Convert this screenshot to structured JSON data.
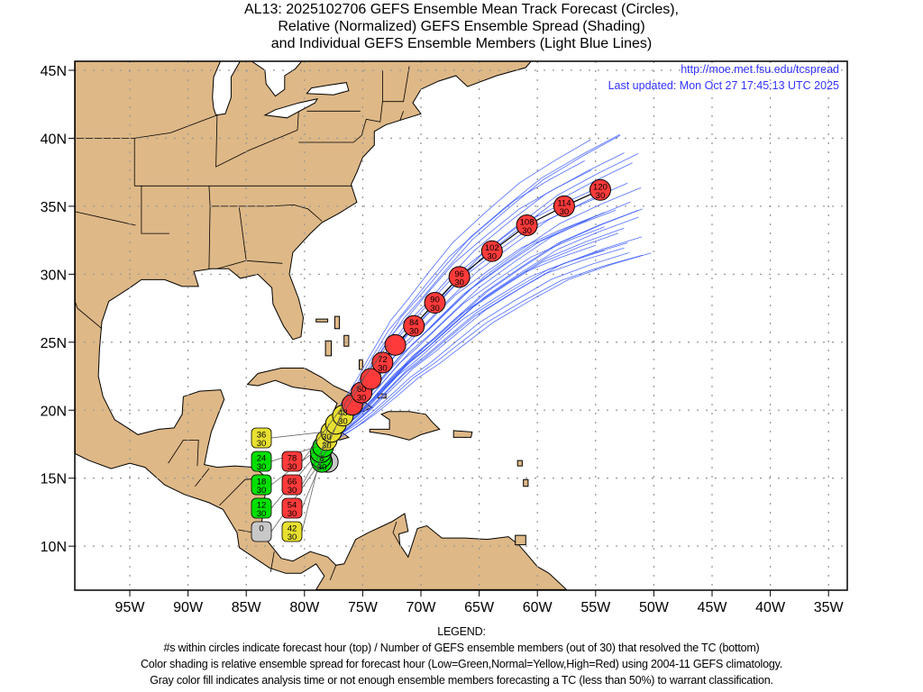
{
  "title": {
    "line1": "AL13: 2025102706 GEFS Ensemble Mean Track Forecast (Circles),",
    "line2": "Relative (Normalized) GEFS Ensemble Spread (Shading)",
    "line3": "and Individual GEFS Ensemble Members (Light Blue Lines)"
  },
  "info": {
    "url": "http://moe.met.fsu.edu/tcspread",
    "updated": "Last updated: Mon Oct 27 17:45:13 UTC 2025"
  },
  "legend": {
    "heading": "LEGEND:",
    "line1": "#s within circles indicate forecast hour (top) / Number of GEFS ensemble members (out of 30) that resolved the TC (bottom)",
    "line2": "Color shading is relative ensemble spread for forecast hour (Low=Green,Normal=Yellow,High=Red) using 2004-11 GEFS climatology.",
    "line3": "Gray color fill indicates analysis time or not enough ensemble members forecasting a TC (less than 50%) to warrant classification."
  },
  "colors": {
    "land": "#deb887",
    "green": "#00e000",
    "yellow": "#e8e030",
    "red": "#ff3a3a",
    "gray": "#c8c8c8",
    "member": "#3355ff",
    "info": "#3333ff"
  },
  "chart_data": {
    "type": "map-track",
    "xlim": [
      -99.7,
      -33.4
    ],
    "ylim": [
      6.8,
      45.7
    ],
    "lon_ticks": [
      {
        "v": -95,
        "label": "95W"
      },
      {
        "v": -90,
        "label": "90W"
      },
      {
        "v": -85,
        "label": "85W"
      },
      {
        "v": -80,
        "label": "80W"
      },
      {
        "v": -75,
        "label": "75W"
      },
      {
        "v": -70,
        "label": "70W"
      },
      {
        "v": -65,
        "label": "65W"
      },
      {
        "v": -60,
        "label": "60W"
      },
      {
        "v": -55,
        "label": "55W"
      },
      {
        "v": -50,
        "label": "50W"
      },
      {
        "v": -45,
        "label": "45W"
      },
      {
        "v": -40,
        "label": "40W"
      },
      {
        "v": -35,
        "label": "35W"
      }
    ],
    "lat_ticks": [
      {
        "v": 10,
        "label": "10N"
      },
      {
        "v": 15,
        "label": "15N"
      },
      {
        "v": 20,
        "label": "20N"
      },
      {
        "v": 25,
        "label": "25N"
      },
      {
        "v": 30,
        "label": "30N"
      },
      {
        "v": 35,
        "label": "35N"
      },
      {
        "v": 40,
        "label": "40N"
      },
      {
        "v": 45,
        "label": "45N"
      }
    ],
    "grid": "dotted",
    "mean_track": [
      {
        "hour": "0",
        "members": "",
        "lon": -78.0,
        "lat": 16.2,
        "spread": "gray"
      },
      {
        "hour": "6",
        "members": "30",
        "lon": -78.5,
        "lat": 16.2,
        "spread": "green"
      },
      {
        "hour": "12",
        "members": "30",
        "lon": -78.6,
        "lat": 16.5,
        "spread": "green"
      },
      {
        "hour": "18",
        "members": "30",
        "lon": -78.6,
        "lat": 16.9,
        "spread": "green"
      },
      {
        "hour": "24",
        "members": "30",
        "lon": -78.4,
        "lat": 17.3,
        "spread": "green"
      },
      {
        "hour": "30",
        "members": "30",
        "lon": -78.1,
        "lat": 17.8,
        "spread": "yellow"
      },
      {
        "hour": "36",
        "members": "30",
        "lon": -77.7,
        "lat": 18.4,
        "spread": "yellow"
      },
      {
        "hour": "42",
        "members": "30",
        "lon": -77.3,
        "lat": 19.0,
        "spread": "yellow"
      },
      {
        "hour": "48",
        "members": "30",
        "lon": -76.7,
        "lat": 19.6,
        "spread": "yellow"
      },
      {
        "hour": "54",
        "members": "30",
        "lon": -75.9,
        "lat": 20.4,
        "spread": "red"
      },
      {
        "hour": "60",
        "members": "30",
        "lon": -75.1,
        "lat": 21.3,
        "spread": "red"
      },
      {
        "hour": "66",
        "members": "30",
        "lon": -74.3,
        "lat": 22.3,
        "spread": "red"
      },
      {
        "hour": "72",
        "members": "30",
        "lon": -73.3,
        "lat": 23.5,
        "spread": "red"
      },
      {
        "hour": "78",
        "members": "30",
        "lon": -72.2,
        "lat": 24.8,
        "spread": "red"
      },
      {
        "hour": "84",
        "members": "30",
        "lon": -70.6,
        "lat": 26.2,
        "spread": "red"
      },
      {
        "hour": "90",
        "members": "30",
        "lon": -68.8,
        "lat": 27.9,
        "spread": "red"
      },
      {
        "hour": "96",
        "members": "30",
        "lon": -66.7,
        "lat": 29.8,
        "spread": "red"
      },
      {
        "hour": "102",
        "members": "30",
        "lon": -63.9,
        "lat": 31.7,
        "spread": "red"
      },
      {
        "hour": "108",
        "members": "30",
        "lon": -60.9,
        "lat": 33.6,
        "spread": "red"
      },
      {
        "hour": "114",
        "members": "30",
        "lon": -57.7,
        "lat": 35.0,
        "spread": "red"
      },
      {
        "hour": "120",
        "members": "30",
        "lon": -54.6,
        "lat": 36.2,
        "spread": "red"
      }
    ],
    "ensemble_members": 30
  }
}
